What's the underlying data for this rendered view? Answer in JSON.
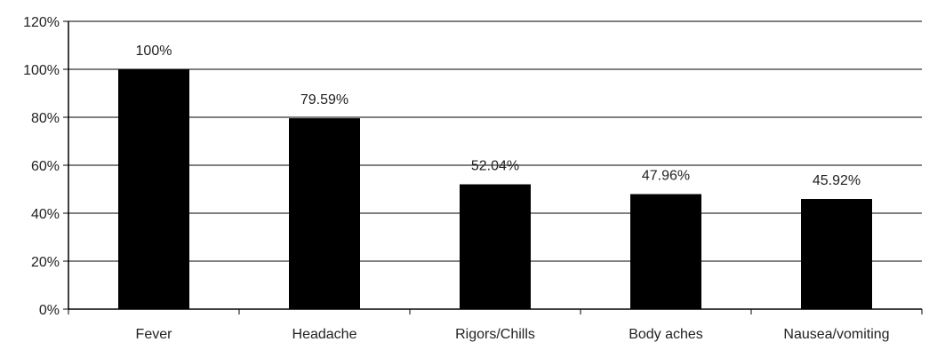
{
  "chart_data": {
    "type": "bar",
    "title": "",
    "xlabel": "",
    "ylabel": "",
    "categories": [
      "Fever",
      "Headache",
      "Rigors/Chills",
      "Body aches",
      "Nausea/vomiting"
    ],
    "values": [
      100,
      79.59,
      52.04,
      47.96,
      45.92
    ],
    "data_labels": [
      "100%",
      "79.59%",
      "52.04%",
      "47.96%",
      "45.92%"
    ],
    "ylim": [
      0,
      120
    ],
    "y_ticks": [
      0,
      20,
      40,
      60,
      80,
      100,
      120
    ],
    "y_tick_labels": [
      "0%",
      "20%",
      "40%",
      "60%",
      "80%",
      "100%",
      "120%"
    ],
    "grid": true,
    "legend": "none",
    "colors": {
      "bar": "#000000",
      "grid": "#000000",
      "text": "#222222"
    }
  }
}
